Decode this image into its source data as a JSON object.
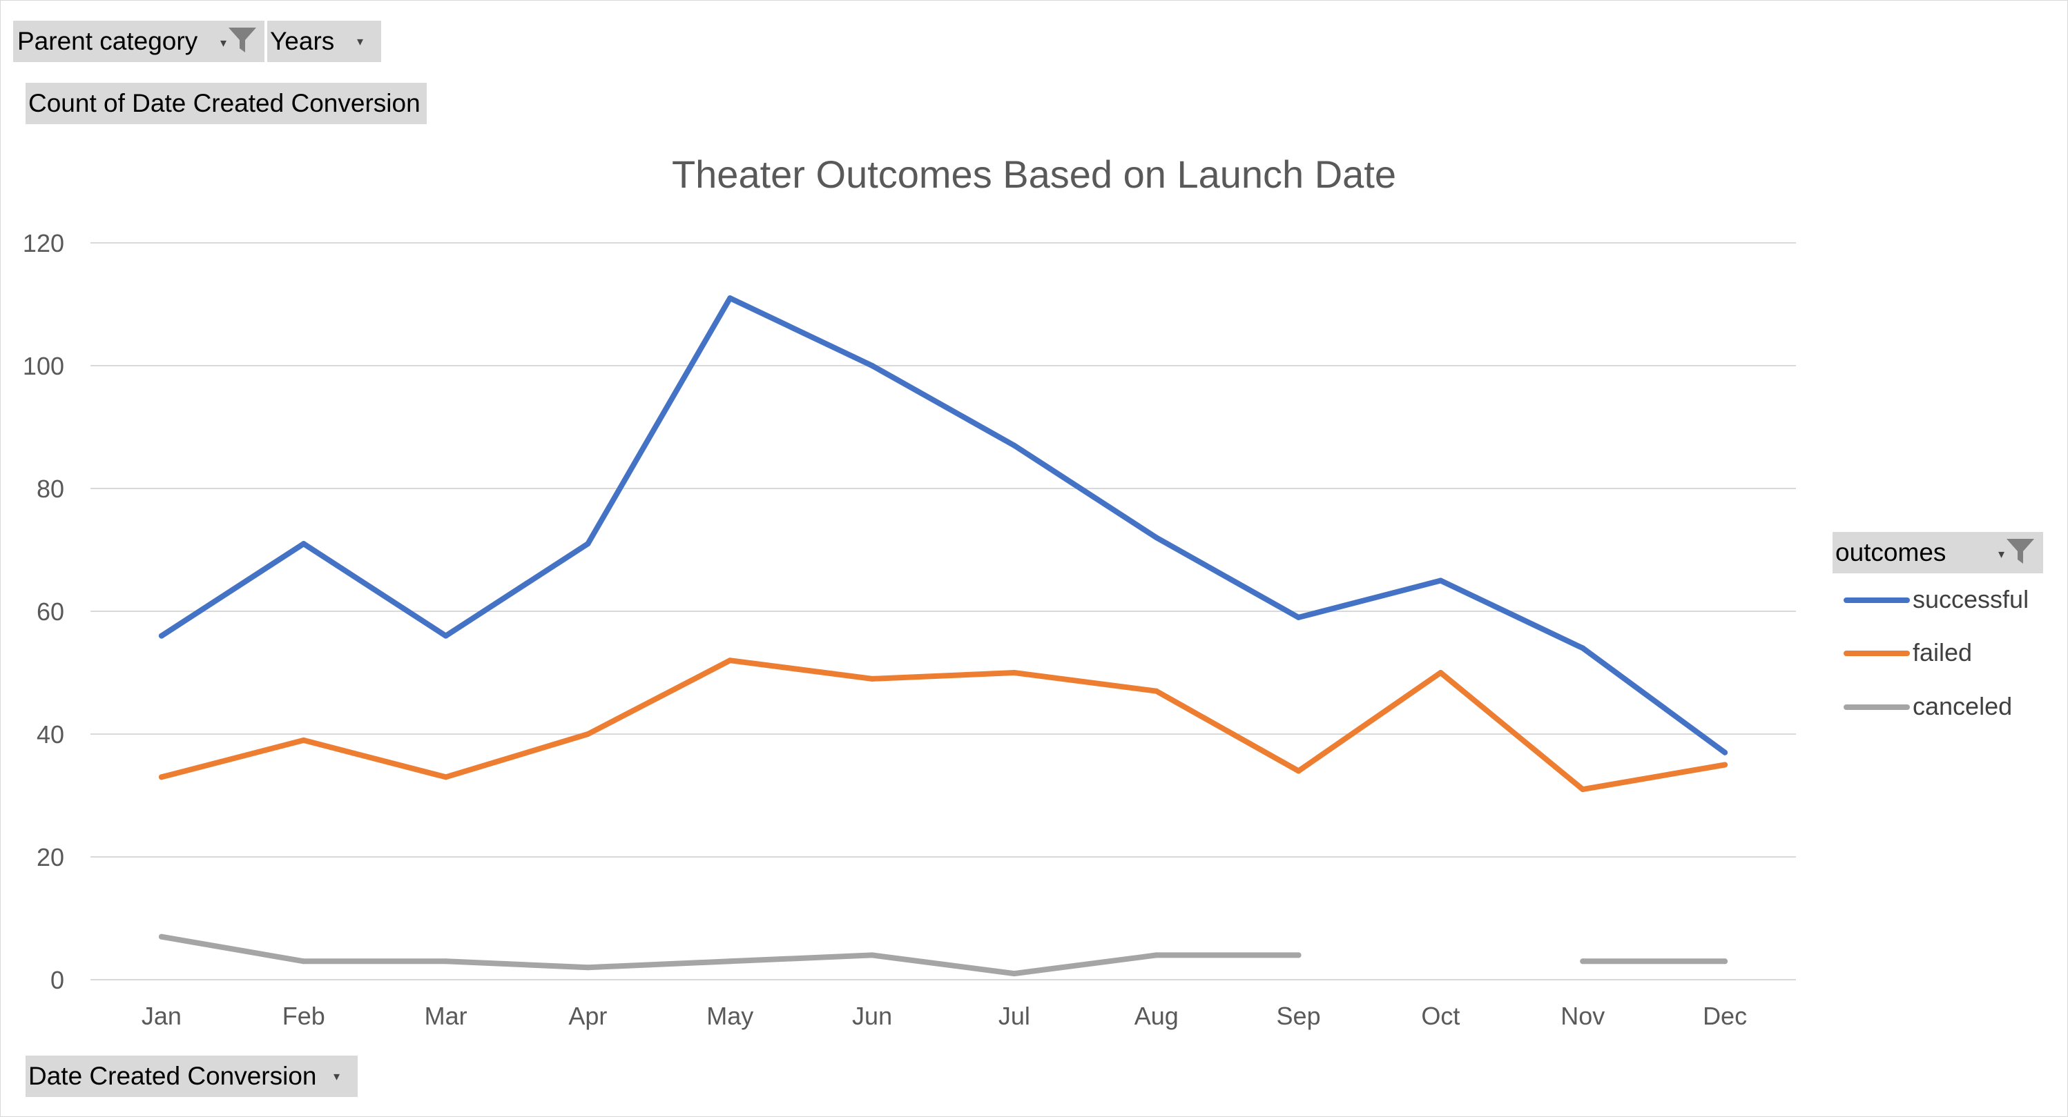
{
  "filters": {
    "parent_category": "Parent category",
    "years": "Years",
    "values_field": "Count of Date Created Conversion",
    "axis_field": "Date Created Conversion",
    "legend_field": "outcomes"
  },
  "colors": {
    "successful": "#4472C4",
    "failed": "#ED7D31",
    "canceled": "#A5A5A5",
    "grid": "#D9D9D9",
    "field_button": "#D9D9D9"
  },
  "icons": {
    "filter": "funnel-filter-icon",
    "dropdown": "dropdown-arrow-icon"
  },
  "chart_data": {
    "type": "line",
    "title": "Theater Outcomes Based on Launch Date",
    "categories": [
      "Jan",
      "Feb",
      "Mar",
      "Apr",
      "May",
      "Jun",
      "Jul",
      "Aug",
      "Sep",
      "Oct",
      "Nov",
      "Dec"
    ],
    "series": [
      {
        "name": "successful",
        "values": [
          56,
          71,
          56,
          71,
          111,
          100,
          87,
          72,
          59,
          65,
          54,
          37
        ]
      },
      {
        "name": "failed",
        "values": [
          33,
          39,
          33,
          40,
          52,
          49,
          50,
          47,
          34,
          50,
          31,
          35
        ]
      },
      {
        "name": "canceled",
        "values": [
          7,
          3,
          3,
          2,
          3,
          4,
          1,
          4,
          4,
          null,
          3,
          3
        ]
      }
    ],
    "yticks": [
      0,
      20,
      40,
      60,
      80,
      100,
      120
    ],
    "ylim": [
      0,
      120
    ],
    "grid": true,
    "legend_position": "right"
  }
}
